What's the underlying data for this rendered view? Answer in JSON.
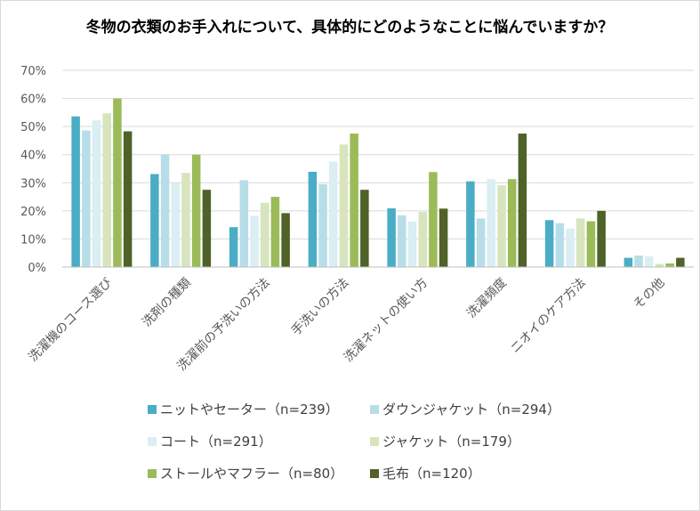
{
  "chart_data": {
    "type": "bar",
    "title": "冬物の衣類のお手入れについて、具体的にどのようなことに悩んでいますか？",
    "categories": [
      "洗濯機のコース選び",
      "洗剤の種類",
      "洗濯前の予洗いの方法",
      "手洗いの方法",
      "洗濯ネットの使い方",
      "洗濯頻度",
      "ニオイのケア方法",
      "その他"
    ],
    "ylim": [
      0,
      70
    ],
    "yticks": [
      "0%",
      "10%",
      "20%",
      "30%",
      "40%",
      "50%",
      "60%",
      "70%"
    ],
    "y_unit": "%",
    "grid": true,
    "legend_position": "bottom",
    "series": [
      {
        "name": "ニットやセーター（n=239）",
        "color": "#4bacc6",
        "values": [
          53.6,
          33.1,
          14.2,
          33.9,
          20.9,
          30.5,
          16.7,
          3.3
        ]
      },
      {
        "name": "ダウンジャケット（n=294）",
        "color": "#b7dee8",
        "values": [
          48.6,
          40.1,
          30.9,
          29.5,
          18.4,
          17.3,
          15.6,
          4.1
        ]
      },
      {
        "name": "コート（n=291）",
        "color": "#daeef3",
        "values": [
          52.2,
          29.9,
          18.2,
          37.5,
          16.2,
          31.3,
          13.7,
          3.8
        ]
      },
      {
        "name": "ジャケット（n=179）",
        "color": "#d7e4bd",
        "values": [
          54.7,
          33.5,
          22.9,
          43.6,
          19.6,
          29.1,
          17.3,
          1.1
        ]
      },
      {
        "name": "ストールやマフラー（n=80）",
        "color": "#9bbb59",
        "values": [
          60.0,
          40.0,
          25.0,
          47.5,
          33.8,
          31.3,
          16.3,
          1.3
        ]
      },
      {
        "name": "毛布（n=120）",
        "color": "#4f6228",
        "values": [
          48.3,
          27.5,
          19.2,
          27.5,
          20.8,
          47.5,
          20.0,
          3.3
        ]
      }
    ]
  }
}
